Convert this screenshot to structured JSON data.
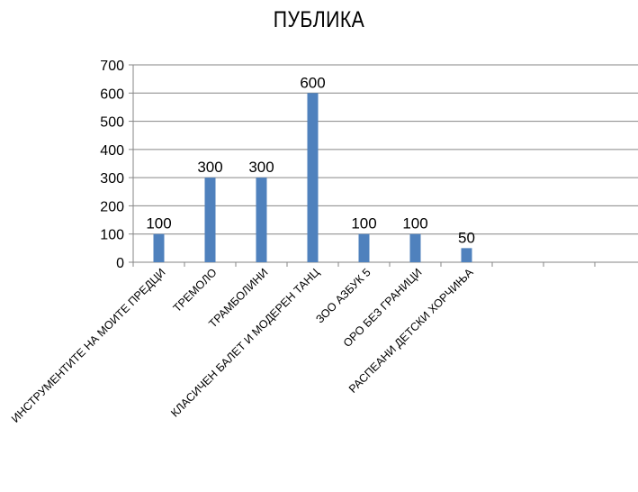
{
  "chart_data": {
    "type": "bar",
    "title": "ПУБЛИКА",
    "xlabel": "",
    "ylabel": "",
    "categories": [
      "ИНСТРУМЕНТИТЕ НА МОИТЕ ПРЕДЦИ",
      "ТРЕМОЛО",
      "ТРАМБОЛИНИ",
      "КЛАСИЧЕН БАЛЕТ И МОДЕРЕН ТАНЦ",
      "ЗОО АЗБУК 5",
      "ОРО БЕЗ ГРАНИЦИ",
      "РАСПЕАНИ ДЕТСКИ ХОРЧИЊА",
      "",
      "",
      ""
    ],
    "values": [
      100,
      300,
      300,
      600,
      100,
      100,
      50,
      null,
      null,
      null
    ],
    "data_labels": [
      "100",
      "300",
      "300",
      "600",
      "100",
      "100",
      "50",
      "",
      "",
      ""
    ],
    "ylim": [
      0,
      700
    ],
    "yticks": [
      0,
      100,
      200,
      300,
      400,
      500,
      600,
      700
    ],
    "grid": true,
    "legend": "none",
    "bar_color": "#4f81bd",
    "grid_color": "#868686"
  }
}
